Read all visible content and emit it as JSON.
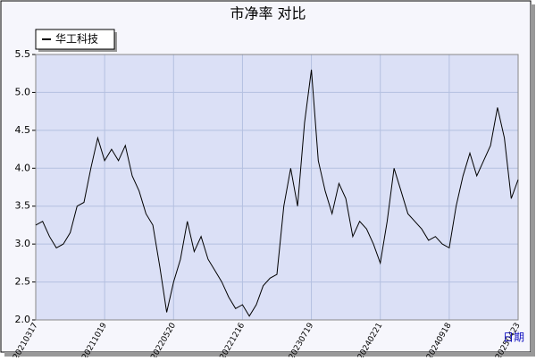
{
  "chart_data": {
    "type": "line",
    "title": "市净率  对比",
    "x_label": "日期",
    "categories": [
      "20210317",
      null,
      null,
      null,
      null,
      null,
      null,
      null,
      null,
      null,
      "20211019",
      null,
      null,
      null,
      null,
      null,
      null,
      null,
      null,
      null,
      "20220520",
      null,
      null,
      null,
      null,
      null,
      null,
      null,
      null,
      null,
      "20221216",
      null,
      null,
      null,
      null,
      null,
      null,
      null,
      null,
      null,
      "20230719",
      null,
      null,
      null,
      null,
      null,
      null,
      null,
      null,
      null,
      "20240221",
      null,
      null,
      null,
      null,
      null,
      null,
      null,
      null,
      null,
      "20240918",
      null,
      null,
      null,
      null,
      null,
      null,
      null,
      null,
      null,
      "20250423"
    ],
    "series": [
      {
        "name": "华工科技",
        "color": "#000000",
        "values": [
          3.25,
          3.3,
          3.1,
          2.95,
          3.0,
          3.15,
          3.5,
          3.55,
          4.0,
          4.4,
          4.1,
          4.25,
          4.1,
          4.3,
          3.9,
          3.7,
          3.4,
          3.25,
          2.7,
          2.1,
          2.5,
          2.8,
          3.3,
          2.9,
          3.1,
          2.8,
          2.65,
          2.5,
          2.3,
          2.15,
          2.2,
          2.05,
          2.2,
          2.45,
          2.55,
          2.6,
          3.5,
          4.0,
          3.5,
          4.6,
          5.3,
          4.1,
          3.7,
          3.4,
          3.8,
          3.6,
          3.1,
          3.3,
          3.2,
          3.0,
          2.75,
          3.3,
          4.0,
          3.7,
          3.4,
          3.3,
          3.2,
          3.05,
          3.1,
          3.0,
          2.95,
          3.5,
          3.9,
          4.2,
          3.9,
          4.1,
          4.3,
          4.8,
          4.4,
          3.6,
          3.85
        ]
      }
    ],
    "ylim": [
      2,
      5.5
    ],
    "yticks": [
      {
        "value": 2,
        "label": "2.0"
      },
      2.5,
      {
        "value": 3,
        "label": "3.0"
      },
      3.5,
      {
        "value": 4,
        "label": "4.0"
      },
      4.5,
      {
        "value": 5,
        "label": "5.0"
      },
      5.5
    ],
    "grid": true
  }
}
